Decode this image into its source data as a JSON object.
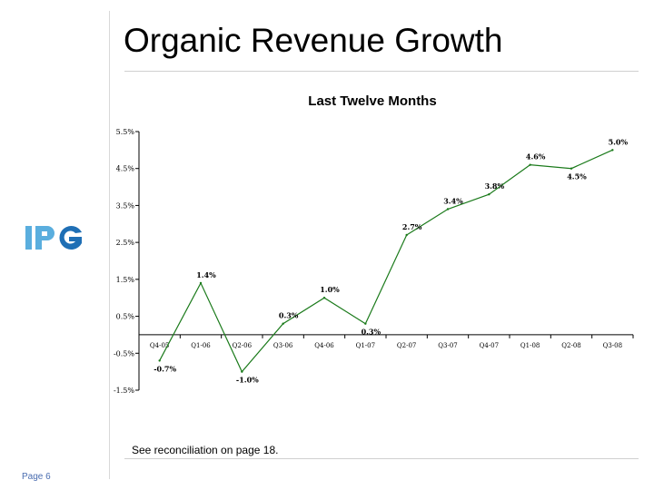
{
  "slide": {
    "title": "Organic Revenue Growth",
    "footnote": "See reconciliation on page 18.",
    "page_label": "Page 6",
    "logo": {
      "text": "IPG",
      "color_light": "#5aaede",
      "color_dark": "#1f6fb5"
    }
  },
  "chart_data": {
    "type": "line",
    "title": "Last Twelve Months",
    "xlabel": "",
    "ylabel": "",
    "ylim": [
      -1.5,
      5.5
    ],
    "yticks": [
      -1.5,
      -0.5,
      0.5,
      1.5,
      2.5,
      3.5,
      4.5,
      5.5
    ],
    "ytick_labels": [
      "-1.5%",
      "-0.5%",
      "0.5%",
      "1.5%",
      "2.5%",
      "3.5%",
      "4.5%",
      "5.5%"
    ],
    "categories": [
      "Q4-05",
      "Q1-06",
      "Q2-06",
      "Q3-06",
      "Q4-06",
      "Q1-07",
      "Q2-07",
      "Q3-07",
      "Q4-07",
      "Q1-08",
      "Q2-08",
      "Q3-08"
    ],
    "series": [
      {
        "name": "Organic Revenue Growth (LTM)",
        "color": "#1a7a1a",
        "values": [
          -0.7,
          1.4,
          -1.0,
          0.3,
          1.0,
          0.3,
          2.7,
          3.4,
          3.8,
          4.6,
          4.5,
          5.0
        ],
        "labels": [
          "-0.7%",
          "1.4%",
          "-1.0%",
          "0.3%",
          "1.0%",
          "0.3%",
          "2.7%",
          "3.4%",
          "3.8%",
          "4.6%",
          "4.5%",
          "5.0%"
        ]
      }
    ],
    "grid": false
  }
}
